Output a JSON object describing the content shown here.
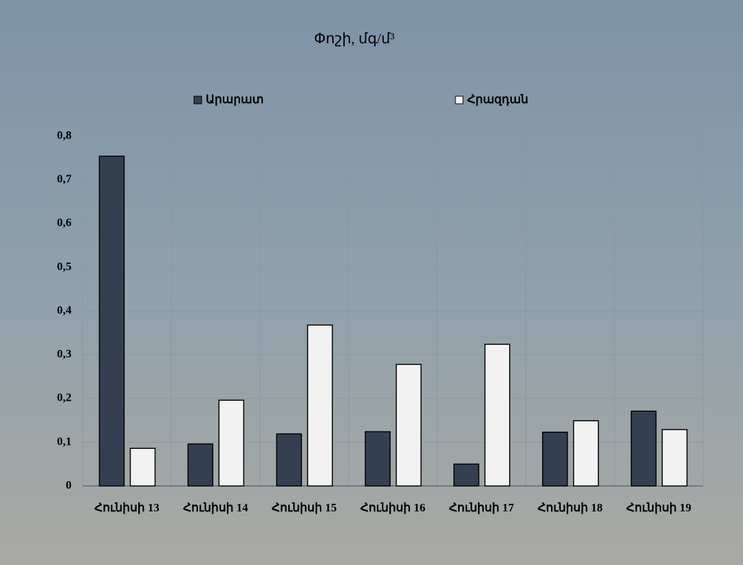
{
  "chart_data": {
    "type": "bar",
    "title": "Փոշի, մգ/մ³",
    "categories": [
      "Հունիսի 13",
      "Հունիսի 14",
      "Հունիսի 15",
      "Հունիսի 16",
      "Հունիսի 17",
      "Հունիսի 18",
      "Հունիսի 19"
    ],
    "series": [
      {
        "name": "Արարատ",
        "color": "#343f51",
        "values": [
          0.754,
          0.096,
          0.119,
          0.124,
          0.05,
          0.123,
          0.171
        ]
      },
      {
        "name": "Հրազդան",
        "color": "#f2f2f2",
        "values": [
          0.086,
          0.196,
          0.368,
          0.278,
          0.324,
          0.149,
          0.129
        ]
      }
    ],
    "ylim": [
      0,
      0.8
    ],
    "yticks": [
      0,
      {
        "value": 0.1,
        "label": "0,1"
      },
      {
        "value": 0.2,
        "label": "0,2"
      },
      {
        "value": 0.3,
        "label": "0,3"
      },
      {
        "value": 0.4,
        "label": "0,4"
      },
      {
        "value": 0.5,
        "label": "0,5"
      },
      {
        "value": 0.6,
        "label": "0,6"
      },
      {
        "value": 0.7,
        "label": "0,7"
      },
      {
        "value": 0.8,
        "label": "0,8"
      }
    ],
    "grid": true,
    "legend": "top"
  }
}
